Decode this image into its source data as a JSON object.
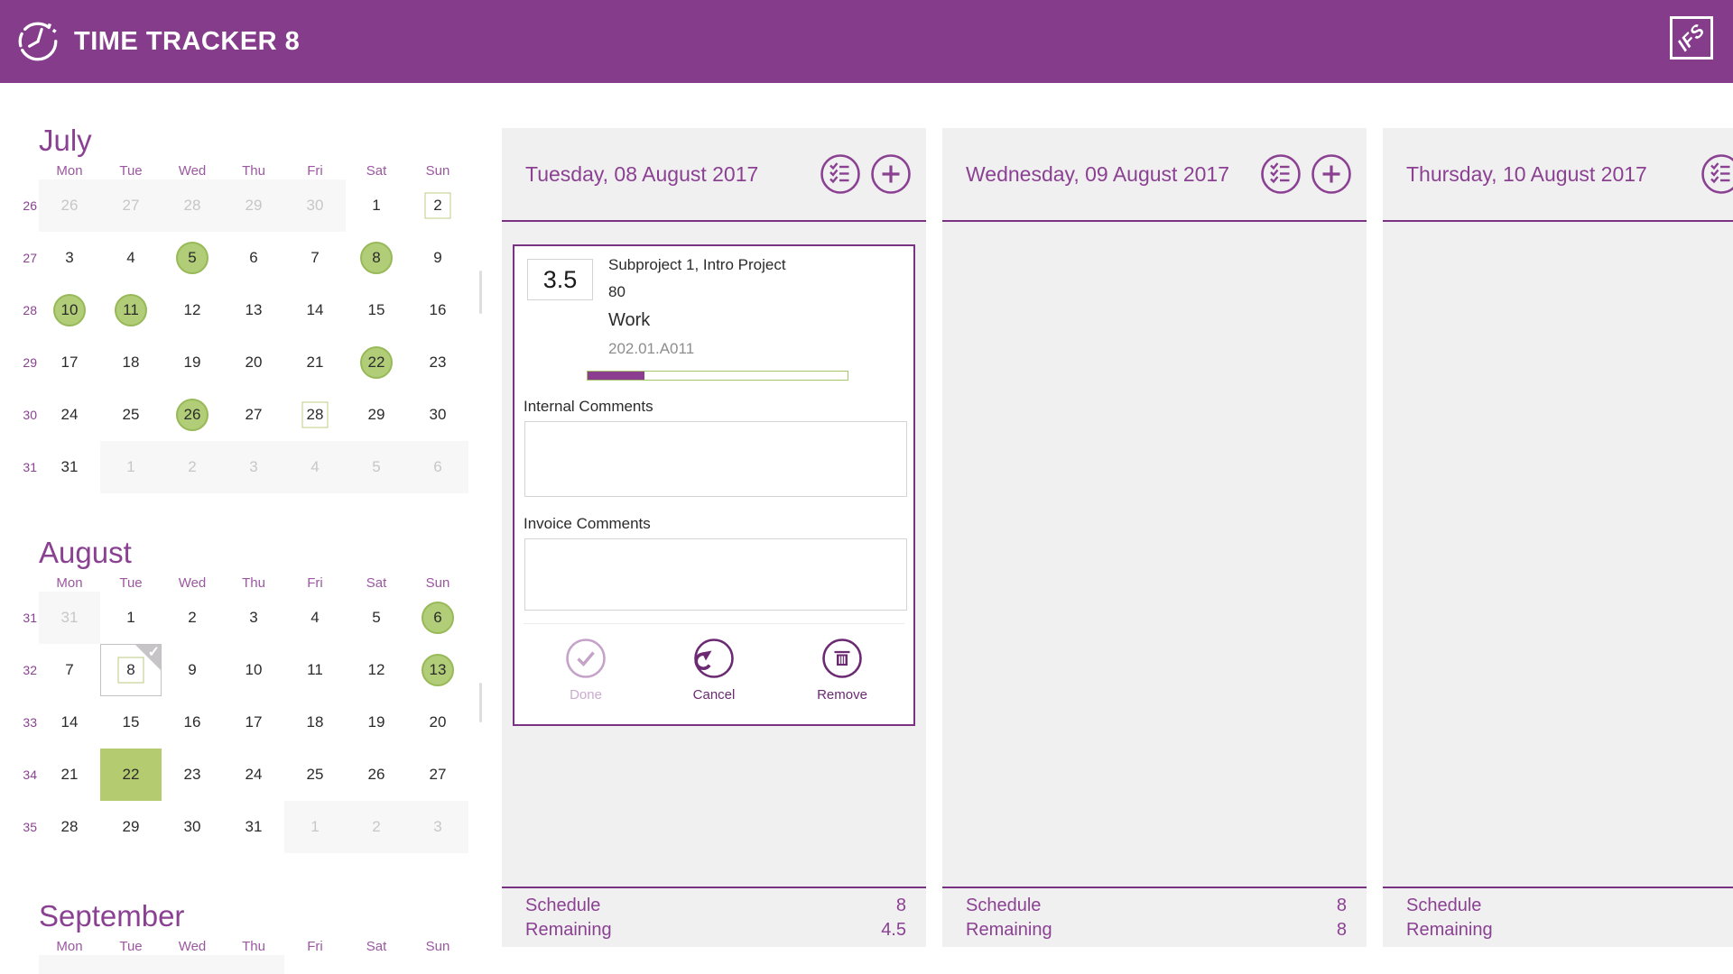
{
  "app": {
    "title": "TIME TRACKER 8",
    "logo_text": "IFS"
  },
  "colors": {
    "header_purple": "#843c8b",
    "accent_purple": "#8a4192",
    "dark_purple": "#6b2a72",
    "card_border_purple": "#7a3283",
    "progress_fill_purple": "#8b3d8f",
    "progress_border_green": "#a6c56b",
    "day_circle_green": "#b1cd78",
    "day_circle_border_green": "#97b957",
    "day_solid_green": "#b5cb70",
    "day_outline_green": "#bccd85",
    "muted_bg": "#f7f7f7",
    "muted_text": "#c8c6c8",
    "column_bg": "#f1f0f1"
  },
  "weekdays": [
    "Mon",
    "Tue",
    "Wed",
    "Thu",
    "Fri",
    "Sat",
    "Sun"
  ],
  "day_state_legend": "n=normal m=other-month c=green-circle so=green-outline-square ss=green-solid-square sel=selected-with-check",
  "months": [
    {
      "title": "July",
      "css": "july",
      "rows": [
        {
          "week": "26",
          "days": [
            {
              "n": "26",
              "s": "m"
            },
            {
              "n": "27",
              "s": "m"
            },
            {
              "n": "28",
              "s": "m"
            },
            {
              "n": "29",
              "s": "m"
            },
            {
              "n": "30",
              "s": "m"
            },
            {
              "n": "1",
              "s": "n"
            },
            {
              "n": "2",
              "s": "so"
            }
          ]
        },
        {
          "week": "27",
          "days": [
            {
              "n": "3",
              "s": "n"
            },
            {
              "n": "4",
              "s": "n"
            },
            {
              "n": "5",
              "s": "c"
            },
            {
              "n": "6",
              "s": "n"
            },
            {
              "n": "7",
              "s": "n"
            },
            {
              "n": "8",
              "s": "c"
            },
            {
              "n": "9",
              "s": "n"
            }
          ]
        },
        {
          "week": "28",
          "days": [
            {
              "n": "10",
              "s": "c"
            },
            {
              "n": "11",
              "s": "c"
            },
            {
              "n": "12",
              "s": "n"
            },
            {
              "n": "13",
              "s": "n"
            },
            {
              "n": "14",
              "s": "n"
            },
            {
              "n": "15",
              "s": "n"
            },
            {
              "n": "16",
              "s": "n"
            }
          ]
        },
        {
          "week": "29",
          "days": [
            {
              "n": "17",
              "s": "n"
            },
            {
              "n": "18",
              "s": "n"
            },
            {
              "n": "19",
              "s": "n"
            },
            {
              "n": "20",
              "s": "n"
            },
            {
              "n": "21",
              "s": "n"
            },
            {
              "n": "22",
              "s": "c"
            },
            {
              "n": "23",
              "s": "n"
            }
          ]
        },
        {
          "week": "30",
          "days": [
            {
              "n": "24",
              "s": "n"
            },
            {
              "n": "25",
              "s": "n"
            },
            {
              "n": "26",
              "s": "c"
            },
            {
              "n": "27",
              "s": "n"
            },
            {
              "n": "28",
              "s": "so"
            },
            {
              "n": "29",
              "s": "n"
            },
            {
              "n": "30",
              "s": "n"
            }
          ]
        },
        {
          "week": "31",
          "days": [
            {
              "n": "31",
              "s": "n"
            },
            {
              "n": "1",
              "s": "m"
            },
            {
              "n": "2",
              "s": "m"
            },
            {
              "n": "3",
              "s": "m"
            },
            {
              "n": "4",
              "s": "m"
            },
            {
              "n": "5",
              "s": "m"
            },
            {
              "n": "6",
              "s": "m"
            }
          ]
        }
      ]
    },
    {
      "title": "August",
      "css": "august",
      "rows": [
        {
          "week": "31",
          "days": [
            {
              "n": "31",
              "s": "m"
            },
            {
              "n": "1",
              "s": "n"
            },
            {
              "n": "2",
              "s": "n"
            },
            {
              "n": "3",
              "s": "n"
            },
            {
              "n": "4",
              "s": "n"
            },
            {
              "n": "5",
              "s": "n"
            },
            {
              "n": "6",
              "s": "c"
            }
          ]
        },
        {
          "week": "32",
          "days": [
            {
              "n": "7",
              "s": "n"
            },
            {
              "n": "8",
              "s": "sel"
            },
            {
              "n": "9",
              "s": "n"
            },
            {
              "n": "10",
              "s": "n"
            },
            {
              "n": "11",
              "s": "n"
            },
            {
              "n": "12",
              "s": "n"
            },
            {
              "n": "13",
              "s": "c"
            }
          ]
        },
        {
          "week": "33",
          "days": [
            {
              "n": "14",
              "s": "n"
            },
            {
              "n": "15",
              "s": "n"
            },
            {
              "n": "16",
              "s": "n"
            },
            {
              "n": "17",
              "s": "n"
            },
            {
              "n": "18",
              "s": "n"
            },
            {
              "n": "19",
              "s": "n"
            },
            {
              "n": "20",
              "s": "n"
            }
          ]
        },
        {
          "week": "34",
          "days": [
            {
              "n": "21",
              "s": "n"
            },
            {
              "n": "22",
              "s": "ss"
            },
            {
              "n": "23",
              "s": "n"
            },
            {
              "n": "24",
              "s": "n"
            },
            {
              "n": "25",
              "s": "n"
            },
            {
              "n": "26",
              "s": "n"
            },
            {
              "n": "27",
              "s": "n"
            }
          ]
        },
        {
          "week": "35",
          "days": [
            {
              "n": "28",
              "s": "n"
            },
            {
              "n": "29",
              "s": "n"
            },
            {
              "n": "30",
              "s": "n"
            },
            {
              "n": "31",
              "s": "n"
            },
            {
              "n": "1",
              "s": "m"
            },
            {
              "n": "2",
              "s": "m"
            },
            {
              "n": "3",
              "s": "m"
            }
          ]
        }
      ]
    },
    {
      "title": "September",
      "css": "september",
      "rows": [
        {
          "week": "",
          "days": [
            {
              "n": "",
              "s": "m"
            },
            {
              "n": "",
              "s": "m"
            },
            {
              "n": "",
              "s": "m"
            },
            {
              "n": "",
              "s": "m"
            },
            {
              "n": "",
              "s": "n"
            },
            {
              "n": "",
              "s": "n"
            },
            {
              "n": "",
              "s": "n"
            }
          ]
        }
      ]
    }
  ],
  "day_columns": [
    {
      "date": "Tuesday, 08 August 2017",
      "has_card": true,
      "schedule_value": "8",
      "remaining_value": "4.5"
    },
    {
      "date": "Wednesday, 09 August 2017",
      "has_card": false,
      "schedule_value": "8",
      "remaining_value": "8"
    },
    {
      "date": "Thursday, 10 August 2017",
      "has_card": false,
      "schedule_value": "",
      "remaining_value": ""
    }
  ],
  "labels": {
    "schedule": "Schedule",
    "remaining": "Remaining"
  },
  "entry_card": {
    "hours": "3.5",
    "project": "Subproject 1, Intro Project",
    "activity": "80",
    "report_type": "Work",
    "code": "202.01.A011",
    "progress_percent": 22,
    "internal_comments_label": "Internal Comments",
    "internal_comments_value": "",
    "invoice_comments_label": "Invoice Comments",
    "invoice_comments_value": "",
    "done_label": "Done",
    "cancel_label": "Cancel",
    "remove_label": "Remove"
  },
  "icons": {
    "header_left": "clock-icon",
    "header_right": "ifs-logo",
    "column_actions": [
      "checklist-icon",
      "add-entry-icon"
    ],
    "card_actions": [
      "done-check-icon",
      "cancel-undo-icon",
      "remove-trash-icon"
    ]
  }
}
